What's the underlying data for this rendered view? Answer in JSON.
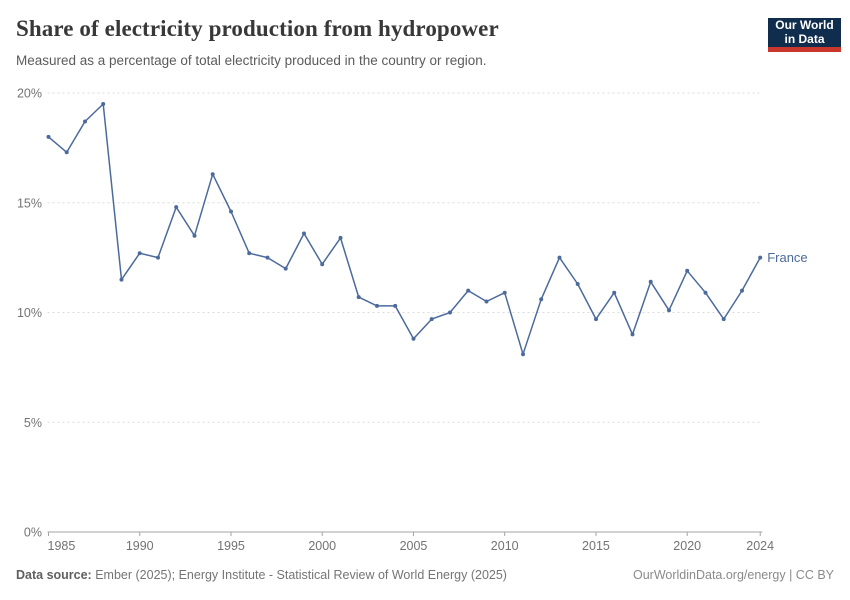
{
  "header": {
    "title": "Share of electricity production from hydropower",
    "subtitle": "Measured as a percentage of total electricity produced in the country or region."
  },
  "logo": {
    "line1": "Our World",
    "line2": "in Data",
    "bg_color": "#102D4E",
    "accent_color": "#C9372C"
  },
  "chart_data": {
    "type": "line",
    "title": "Share of electricity production from hydropower",
    "xlabel": "",
    "ylabel": "",
    "xlim": [
      1985,
      2024
    ],
    "ylim": [
      0,
      20
    ],
    "grid": true,
    "gridline_style": "dashed",
    "legend_position": "end-of-line",
    "yticks": [
      0,
      5,
      10,
      15,
      20
    ],
    "ytick_labels": [
      "0%",
      "5%",
      "10%",
      "15%",
      "20%"
    ],
    "xticks": [
      1985,
      1990,
      1995,
      2000,
      2005,
      2010,
      2015,
      2020,
      2024
    ],
    "xtick_labels": [
      "1985",
      "1990",
      "1995",
      "2000",
      "2005",
      "2010",
      "2015",
      "2020",
      "2024"
    ],
    "series": [
      {
        "name": "France",
        "color": "#4C6A9C",
        "x": [
          1985,
          1986,
          1987,
          1988,
          1989,
          1990,
          1991,
          1992,
          1993,
          1994,
          1995,
          1996,
          1997,
          1998,
          1999,
          2000,
          2001,
          2002,
          2003,
          2004,
          2005,
          2006,
          2007,
          2008,
          2009,
          2010,
          2011,
          2012,
          2013,
          2014,
          2015,
          2016,
          2017,
          2018,
          2019,
          2020,
          2021,
          2022,
          2023,
          2024
        ],
        "values": [
          18.0,
          17.3,
          18.7,
          19.5,
          11.5,
          12.7,
          12.5,
          14.8,
          13.5,
          16.3,
          14.6,
          12.7,
          12.5,
          12.0,
          13.6,
          12.2,
          13.4,
          10.7,
          10.3,
          10.3,
          8.8,
          9.7,
          10.0,
          11.0,
          10.5,
          10.9,
          8.1,
          10.6,
          12.5,
          11.3,
          9.7,
          10.9,
          9.0,
          11.4,
          10.1,
          11.9,
          10.9,
          9.7,
          11.0,
          12.5
        ]
      }
    ],
    "colors": {
      "gridline": "#DBDBDB",
      "axis_line": "#A3A3A3",
      "tick_label": "#737373"
    }
  },
  "footer": {
    "source_label": "Data source:",
    "source_text": " Ember (2025); Energy Institute - Statistical Review of World Energy (2025)",
    "attribution": "OurWorldinData.org/energy | CC BY"
  }
}
